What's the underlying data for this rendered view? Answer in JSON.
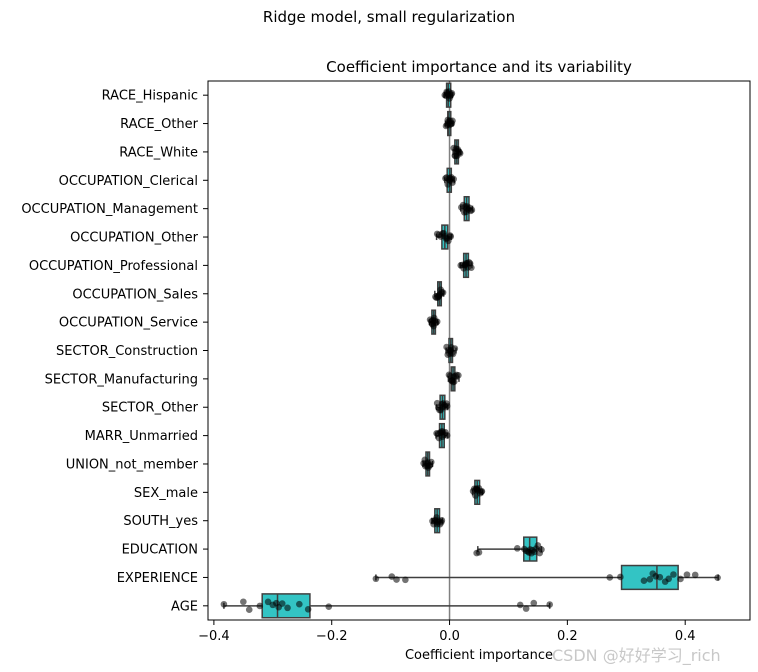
{
  "figure": {
    "suptitle": "Ridge model, small regularization",
    "watermark": "CSDN @好好学习_rich"
  },
  "chart_data": {
    "type": "boxplot",
    "orientation": "horizontal",
    "title": "Coefficient importance and its variability",
    "xlabel": "Coefficient importance",
    "ylabel": "",
    "xlim": [
      -0.41,
      0.51
    ],
    "xticks": [
      -0.4,
      -0.2,
      0.0,
      0.2,
      0.4
    ],
    "xtick_labels": [
      "−0.4",
      "−0.2",
      "0.0",
      "0.2",
      "0.4"
    ],
    "zero_line": 0.0,
    "box_color": "#33c4c4",
    "point_color": "#000000",
    "categories": [
      {
        "name": "RACE_Hispanic",
        "min": -0.009,
        "q1": -0.005,
        "median": -0.002,
        "q3": 0.002,
        "max": 0.005,
        "points": [
          -0.008,
          -0.006,
          -0.005,
          -0.004,
          -0.003,
          -0.002,
          -0.001,
          0.0,
          0.001,
          0.003,
          0.004
        ]
      },
      {
        "name": "RACE_Other",
        "min": -0.007,
        "q1": -0.003,
        "median": -0.001,
        "q3": 0.002,
        "max": 0.006,
        "points": [
          -0.006,
          -0.004,
          -0.003,
          -0.002,
          -0.001,
          0.0,
          0.001,
          0.002,
          0.004,
          0.005
        ]
      },
      {
        "name": "RACE_White",
        "min": 0.006,
        "q1": 0.009,
        "median": 0.012,
        "q3": 0.015,
        "max": 0.019,
        "points": [
          0.007,
          0.009,
          0.01,
          0.011,
          0.012,
          0.013,
          0.014,
          0.015,
          0.017,
          0.018
        ]
      },
      {
        "name": "OCCUPATION_Clerical",
        "min": -0.008,
        "q1": -0.004,
        "median": 0.0,
        "q3": 0.003,
        "max": 0.008,
        "points": [
          -0.007,
          -0.005,
          -0.003,
          -0.001,
          0.0,
          0.001,
          0.002,
          0.003,
          0.005,
          0.007
        ]
      },
      {
        "name": "OCCUPATION_Management",
        "min": 0.019,
        "q1": 0.025,
        "median": 0.029,
        "q3": 0.033,
        "max": 0.039,
        "points": [
          0.02,
          0.023,
          0.025,
          0.027,
          0.028,
          0.029,
          0.03,
          0.032,
          0.034,
          0.036,
          0.038
        ]
      },
      {
        "name": "OCCUPATION_Other",
        "min": -0.022,
        "q1": -0.013,
        "median": -0.008,
        "q3": -0.003,
        "max": 0.003,
        "points": [
          -0.021,
          -0.018,
          -0.015,
          -0.012,
          -0.01,
          -0.008,
          -0.006,
          -0.004,
          -0.002,
          0.001,
          0.002
        ]
      },
      {
        "name": "OCCUPATION_Professional",
        "min": 0.018,
        "q1": 0.024,
        "median": 0.028,
        "q3": 0.032,
        "max": 0.038,
        "points": [
          0.019,
          0.022,
          0.024,
          0.026,
          0.027,
          0.028,
          0.03,
          0.031,
          0.033,
          0.035,
          0.037
        ]
      },
      {
        "name": "OCCUPATION_Sales",
        "min": -0.025,
        "q1": -0.02,
        "median": -0.017,
        "q3": -0.014,
        "max": -0.01,
        "points": [
          -0.024,
          -0.022,
          -0.02,
          -0.019,
          -0.018,
          -0.017,
          -0.016,
          -0.015,
          -0.013,
          -0.011
        ]
      },
      {
        "name": "OCCUPATION_Service",
        "min": -0.034,
        "q1": -0.03,
        "median": -0.027,
        "q3": -0.024,
        "max": -0.02,
        "points": [
          -0.033,
          -0.031,
          -0.03,
          -0.029,
          -0.028,
          -0.027,
          -0.026,
          -0.025,
          -0.023,
          -0.021
        ]
      },
      {
        "name": "SECTOR_Construction",
        "min": -0.006,
        "q1": -0.001,
        "median": 0.002,
        "q3": 0.005,
        "max": 0.011,
        "points": [
          -0.005,
          -0.003,
          -0.001,
          0.0,
          0.001,
          0.002,
          0.003,
          0.004,
          0.006,
          0.009
        ]
      },
      {
        "name": "SECTOR_Manufacturing",
        "min": -0.002,
        "q1": 0.003,
        "median": 0.006,
        "q3": 0.009,
        "max": 0.016,
        "points": [
          -0.001,
          0.001,
          0.003,
          0.004,
          0.005,
          0.006,
          0.007,
          0.008,
          0.01,
          0.012,
          0.015
        ]
      },
      {
        "name": "SECTOR_Other",
        "min": -0.022,
        "q1": -0.016,
        "median": -0.012,
        "q3": -0.008,
        "max": -0.003,
        "points": [
          -0.021,
          -0.019,
          -0.017,
          -0.015,
          -0.013,
          -0.012,
          -0.011,
          -0.009,
          -0.007,
          -0.005,
          -0.004
        ]
      },
      {
        "name": "MARR_Unmarried",
        "min": -0.023,
        "q1": -0.017,
        "median": -0.013,
        "q3": -0.009,
        "max": -0.003,
        "points": [
          -0.022,
          -0.02,
          -0.018,
          -0.016,
          -0.015,
          -0.013,
          -0.012,
          -0.011,
          -0.009,
          -0.007,
          -0.004
        ]
      },
      {
        "name": "UNION_not_member",
        "min": -0.045,
        "q1": -0.04,
        "median": -0.037,
        "q3": -0.034,
        "max": -0.029,
        "points": [
          -0.044,
          -0.042,
          -0.041,
          -0.039,
          -0.038,
          -0.037,
          -0.036,
          -0.035,
          -0.033,
          -0.031
        ]
      },
      {
        "name": "SEX_male",
        "min": 0.039,
        "q1": 0.043,
        "median": 0.047,
        "q3": 0.051,
        "max": 0.056,
        "points": [
          0.04,
          0.042,
          0.044,
          0.045,
          0.046,
          0.047,
          0.048,
          0.05,
          0.052,
          0.054,
          0.055
        ]
      },
      {
        "name": "SOUTH_yes",
        "min": -0.03,
        "q1": -0.025,
        "median": -0.021,
        "q3": -0.017,
        "max": -0.012,
        "points": [
          -0.029,
          -0.027,
          -0.025,
          -0.024,
          -0.022,
          -0.021,
          -0.02,
          -0.018,
          -0.016,
          -0.014,
          -0.013
        ]
      },
      {
        "name": "EDUCATION",
        "min": 0.048,
        "q1": 0.126,
        "median": 0.136,
        "q3": 0.148,
        "max": 0.156,
        "points": [
          0.046,
          0.05,
          0.115,
          0.127,
          0.13,
          0.133,
          0.135,
          0.137,
          0.139,
          0.141,
          0.144,
          0.147,
          0.15,
          0.153,
          0.156
        ]
      },
      {
        "name": "EXPERIENCE",
        "min": -0.125,
        "q1": 0.292,
        "median": 0.352,
        "q3": 0.388,
        "max": 0.456,
        "points": [
          -0.125,
          -0.098,
          -0.09,
          -0.075,
          0.272,
          0.29,
          0.33,
          0.34,
          0.345,
          0.35,
          0.357,
          0.366,
          0.372,
          0.38,
          0.392,
          0.403,
          0.417,
          0.455
        ]
      },
      {
        "name": "AGE",
        "min": -0.383,
        "q1": -0.318,
        "median": -0.292,
        "q3": -0.237,
        "max": 0.17,
        "points": [
          -0.383,
          -0.35,
          -0.34,
          -0.322,
          -0.308,
          -0.3,
          -0.294,
          -0.29,
          -0.284,
          -0.275,
          -0.255,
          -0.24,
          -0.205,
          0.12,
          0.13,
          0.143,
          0.17
        ]
      }
    ]
  }
}
